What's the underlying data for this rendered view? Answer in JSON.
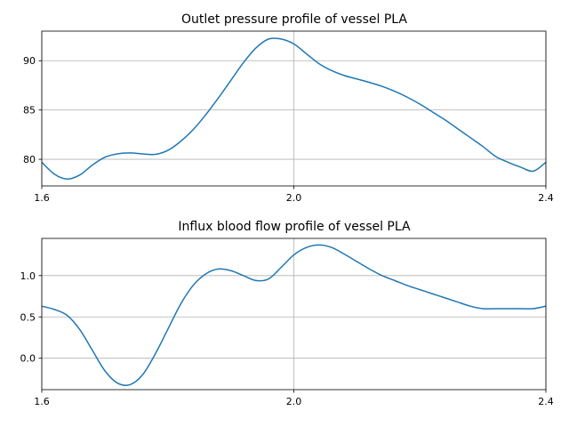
{
  "chart_data": [
    {
      "type": "line",
      "title": "Outlet pressure profile of vessel PLA",
      "xlabel": "",
      "ylabel": "",
      "xlim": [
        1.6,
        2.4
      ],
      "ylim": [
        77.3,
        93.0
      ],
      "xticks": [
        1.6,
        2.0,
        2.4
      ],
      "xtick_labels": [
        "1.6",
        "2.0",
        "2.4"
      ],
      "yticks": [
        80,
        85,
        90
      ],
      "ytick_labels": [
        "80",
        "85",
        "90"
      ],
      "grid": true,
      "color": "#1f77b4",
      "series": [
        {
          "x": [
            1.6,
            1.62,
            1.64,
            1.66,
            1.68,
            1.7,
            1.72,
            1.74,
            1.76,
            1.78,
            1.8,
            1.82,
            1.84,
            1.86,
            1.88,
            1.9,
            1.92,
            1.94,
            1.96,
            1.98,
            2.0,
            2.02,
            2.04,
            2.06,
            2.08,
            2.1,
            2.12,
            2.14,
            2.16,
            2.18,
            2.2,
            2.22,
            2.24,
            2.26,
            2.28,
            2.3,
            2.32,
            2.34,
            2.36,
            2.38,
            2.4
          ],
          "y": [
            79.7,
            78.5,
            78.0,
            78.4,
            79.4,
            80.2,
            80.55,
            80.65,
            80.55,
            80.5,
            80.9,
            81.8,
            83.0,
            84.5,
            86.2,
            88.0,
            89.8,
            91.3,
            92.2,
            92.2,
            91.7,
            90.7,
            89.7,
            89.0,
            88.5,
            88.15,
            87.8,
            87.4,
            86.9,
            86.3,
            85.6,
            84.8,
            84.0,
            83.1,
            82.2,
            81.3,
            80.3,
            79.7,
            79.2,
            78.8,
            79.7
          ]
        }
      ]
    },
    {
      "type": "line",
      "title": "Influx blood flow profile of vessel PLA",
      "xlabel": "",
      "ylabel": "",
      "xlim": [
        1.6,
        2.4
      ],
      "ylim": [
        -0.38,
        1.45
      ],
      "xticks": [
        1.6,
        2.0,
        2.4
      ],
      "xtick_labels": [
        "1.6",
        "2.0",
        "2.4"
      ],
      "yticks": [
        0.0,
        0.5,
        1.0
      ],
      "ytick_labels": [
        "0.0",
        "0.5",
        "1.0"
      ],
      "grid": true,
      "color": "#1f77b4",
      "series": [
        {
          "x": [
            1.6,
            1.62,
            1.64,
            1.66,
            1.68,
            1.7,
            1.72,
            1.74,
            1.76,
            1.78,
            1.8,
            1.82,
            1.84,
            1.86,
            1.88,
            1.9,
            1.92,
            1.94,
            1.96,
            1.98,
            2.0,
            2.02,
            2.04,
            2.06,
            2.08,
            2.1,
            2.12,
            2.14,
            2.16,
            2.18,
            2.2,
            2.22,
            2.24,
            2.26,
            2.28,
            2.3,
            2.32,
            2.34,
            2.36,
            2.38,
            2.4
          ],
          "y": [
            0.63,
            0.59,
            0.52,
            0.35,
            0.1,
            -0.15,
            -0.3,
            -0.32,
            -0.2,
            0.05,
            0.35,
            0.65,
            0.88,
            1.02,
            1.08,
            1.06,
            1.0,
            0.94,
            0.96,
            1.1,
            1.25,
            1.34,
            1.37,
            1.34,
            1.26,
            1.17,
            1.08,
            1.0,
            0.94,
            0.88,
            0.83,
            0.78,
            0.73,
            0.68,
            0.63,
            0.6,
            0.6,
            0.6,
            0.6,
            0.6,
            0.63
          ]
        }
      ]
    }
  ]
}
